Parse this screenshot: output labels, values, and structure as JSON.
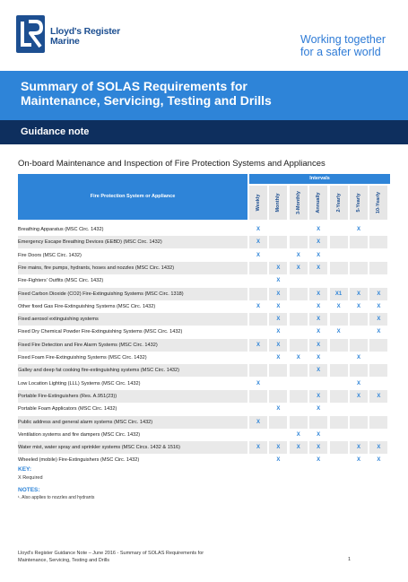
{
  "brand": {
    "line1": "Lloyd's Register",
    "line2": "Marine"
  },
  "tagline": {
    "line1": "Working together",
    "line2": "for a safer world"
  },
  "banner": {
    "line1": "Summary of SOLAS Requirements for",
    "line2": "Maintenance, Servicing, Testing and Drills"
  },
  "guidance_label": "Guidance note",
  "section_title": "On-board Maintenance and Inspection of Fire Protection Systems and Appliances",
  "table": {
    "header_system": "Fire Protection System or Appliance",
    "header_intervals": "Intervals",
    "columns": [
      "Weekly",
      "Monthly",
      "3-Monthly",
      "Annually",
      "2-Yearly",
      "5-Yearly",
      "10-Yearly"
    ],
    "rows": [
      {
        "label": "Breathing Apparatus (MSC Circ. 1432)",
        "cells": [
          "X",
          "",
          "",
          "X",
          "",
          "X",
          ""
        ]
      },
      {
        "label": "Emergency Escape Breathing Devices (EEBD) (MSC Circ. 1432)",
        "cells": [
          "X",
          "",
          "",
          "X",
          "",
          "",
          ""
        ]
      },
      {
        "label": "Fire Doors (MSC Circ. 1432)",
        "cells": [
          "X",
          "",
          "X",
          "X",
          "",
          "",
          ""
        ]
      },
      {
        "label": "Fire mains, fire pumps, hydrants, hoses and nozzles (MSC Circ. 1432)",
        "cells": [
          "",
          "X",
          "X",
          "X",
          "",
          "",
          ""
        ]
      },
      {
        "label": "Fire-Fighters' Outfits (MSC Circ. 1432)",
        "cells": [
          "",
          "X",
          "",
          "",
          "",
          "",
          ""
        ]
      },
      {
        "label": "Fixed Carbon Dioxide (CO2) Fire-Extinguishing Systems (MSC Circ. 1318)",
        "cells": [
          "",
          "X",
          "",
          "X",
          "X1",
          "X",
          "X"
        ]
      },
      {
        "label": "Other fixed Gas Fire-Extinguishing Systems (MSC Circ. 1432)",
        "cells": [
          "X",
          "X",
          "",
          "X",
          "X",
          "X",
          "X"
        ]
      },
      {
        "label": "Fixed aerosol extinguishing systems",
        "cells": [
          "",
          "X",
          "",
          "X",
          "",
          "",
          "X"
        ]
      },
      {
        "label": "Fixed Dry Chemical Powder Fire-Extinguishing Systems (MSC Circ. 1432)",
        "cells": [
          "",
          "X",
          "",
          "X",
          "X",
          "",
          "X"
        ]
      },
      {
        "label": "Fixed Fire Detection and Fire Alarm Systems (MSC Circ. 1432)",
        "cells": [
          "X",
          "X",
          "",
          "X",
          "",
          "",
          ""
        ]
      },
      {
        "label": "Fixed Foam Fire-Extinguishing Systems (MSC Circ. 1432)",
        "cells": [
          "",
          "X",
          "X",
          "X",
          "",
          "X",
          ""
        ]
      },
      {
        "label": "Galley and deep fat cooking fire-extinguishing systems (MSC Circ. 1432)",
        "cells": [
          "",
          "",
          "",
          "X",
          "",
          "",
          ""
        ]
      },
      {
        "label": "Low Location Lighting (LLL) Systems (MSC Circ. 1432)",
        "cells": [
          "X",
          "",
          "",
          "",
          "",
          "X",
          ""
        ]
      },
      {
        "label": "Portable Fire-Extinguishers (Res. A.951(23))",
        "cells": [
          "",
          "",
          "",
          "X",
          "",
          "X",
          "X"
        ]
      },
      {
        "label": "Portable Foam Applicators (MSC Circ. 1432)",
        "cells": [
          "",
          "X",
          "",
          "X",
          "",
          "",
          ""
        ]
      },
      {
        "label": "Public address and general alarm systems (MSC Circ. 1432)",
        "cells": [
          "X",
          "",
          "",
          "",
          "",
          "",
          ""
        ]
      },
      {
        "label": "Ventilation systems and fire dampers (MSC Circ. 1432)",
        "cells": [
          "",
          "",
          "X",
          "X",
          "",
          "",
          ""
        ]
      },
      {
        "label": "Water mist, water spray and sprinkler systems (MSC Circs. 1432 & 1516)",
        "cells": [
          "X",
          "X",
          "X",
          "X",
          "",
          "X",
          "X"
        ]
      },
      {
        "label": "Wheeled (mobile) Fire-Extinguishers (MSC Circ. 1432)",
        "cells": [
          "",
          "X",
          "",
          "X",
          "",
          "X",
          "X"
        ]
      }
    ]
  },
  "key": {
    "title": "KEY:",
    "text": "X    Required"
  },
  "notes": {
    "title": "NOTES:",
    "text": "¹. Also applies to nozzles and hydrants"
  },
  "footer": {
    "line1": "Lloyd's Register Guidance Note – June 2016 - Summary of SOLAS Requirements for",
    "line2": "Maintenance, Servicing, Testing and Drills",
    "page": "1"
  },
  "colors": {
    "accent": "#2e84d8",
    "navy": "#0e2f5e",
    "brand_blue": "#1d4f91",
    "shade": "#e9e9e9"
  }
}
